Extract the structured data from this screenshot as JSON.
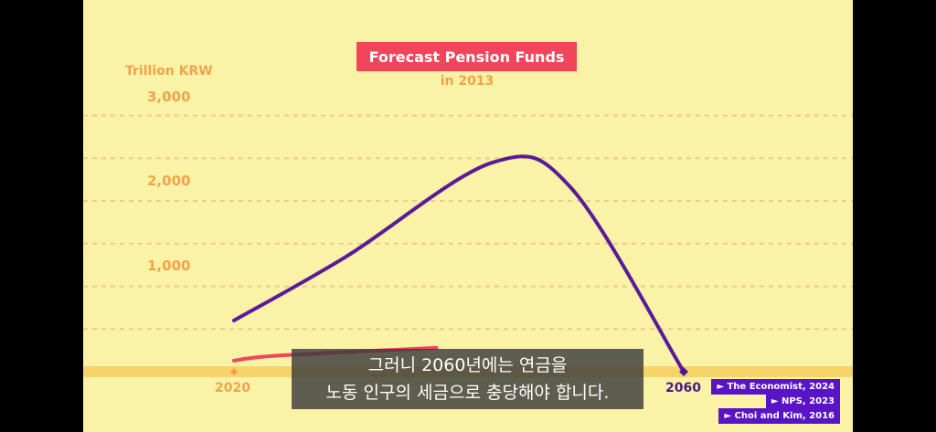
{
  "chart_data": {
    "type": "line",
    "title": "Forecast Pension Funds",
    "subtitle": "in 2013",
    "ylabel": "Trillion KRW",
    "ylim": [
      0,
      3000
    ],
    "yticks": [
      "1,000",
      "2,000",
      "3,000"
    ],
    "xticks_visible": [
      "2020",
      "2060"
    ],
    "grid": true,
    "series": [
      {
        "color": "#5a1a9a",
        "points": [
          [
            2020,
            600
          ],
          [
            2030,
            1350
          ],
          [
            2043,
            2450
          ],
          [
            2050,
            2150
          ],
          [
            2060,
            0
          ]
        ]
      },
      {
        "color": "#f0455a",
        "points": [
          [
            2020,
            130
          ],
          [
            2024,
            190
          ],
          [
            2038,
            280
          ]
        ]
      }
    ]
  },
  "caption": {
    "line1": "그러니 2060년에는 연금을",
    "line2": "노동 인구의 세금으로 충당해야 합니다."
  },
  "sources": [
    "► The Economist, 2024",
    "► NPS, 2023",
    "► Choi and Kim, 2016"
  ]
}
